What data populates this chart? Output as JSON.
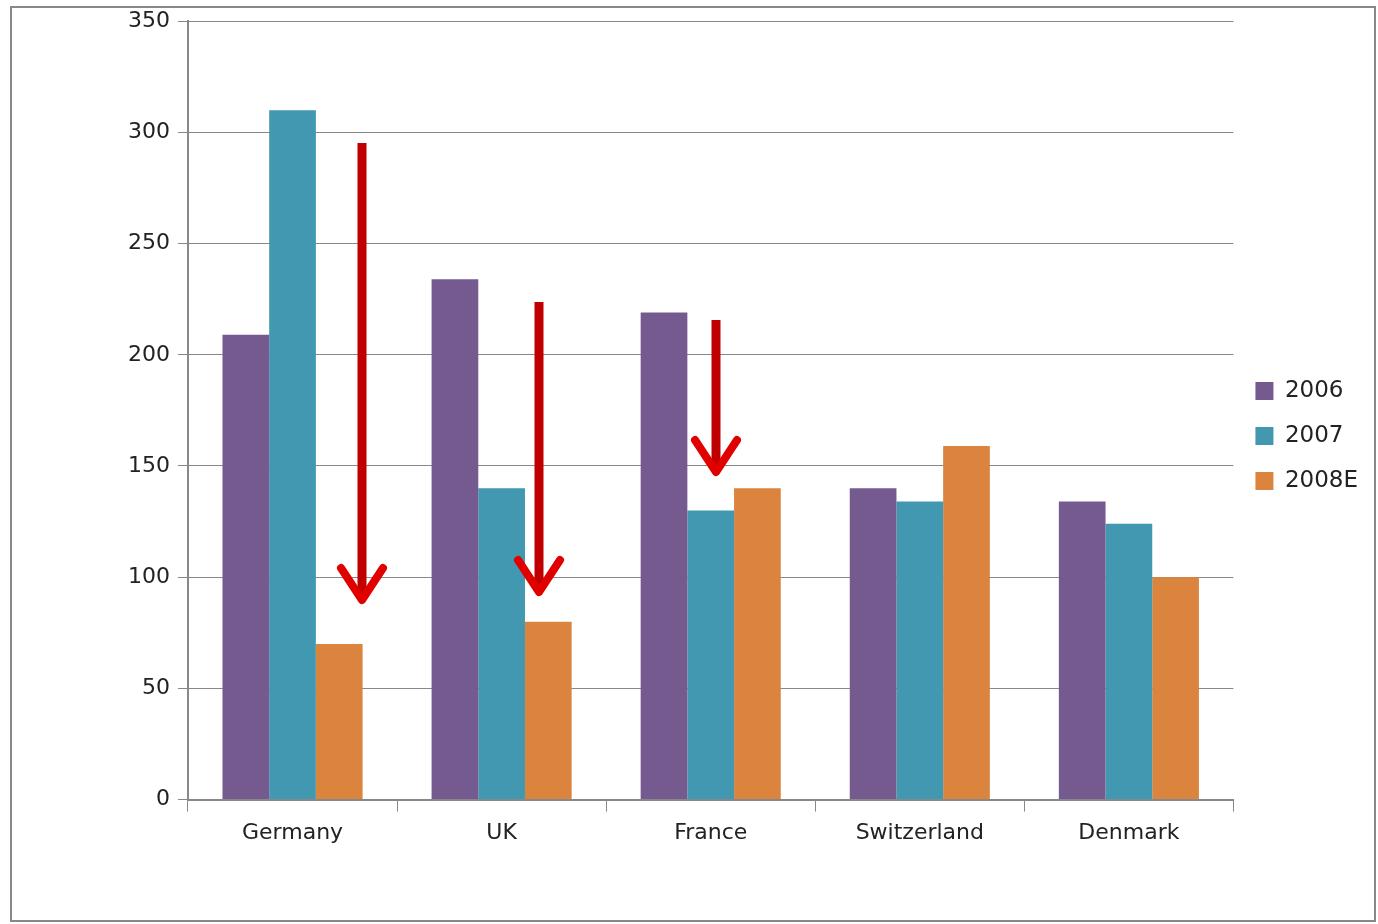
{
  "chart_data": {
    "type": "bar",
    "categories": [
      "Germany",
      "UK",
      "France",
      "Switzerland",
      "Denmark"
    ],
    "series": [
      {
        "name": "2006",
        "color": "#745a8f",
        "values": [
          209,
          234,
          219,
          140,
          134
        ]
      },
      {
        "name": "2007",
        "color": "#4198b0",
        "values": [
          310,
          140,
          130,
          134,
          124
        ]
      },
      {
        "name": "2008E",
        "color": "#db843d",
        "values": [
          70,
          80,
          140,
          159,
          100
        ]
      }
    ],
    "ylim": [
      0,
      350
    ],
    "yticks": [
      0,
      50,
      100,
      150,
      200,
      250,
      300,
      350
    ],
    "grid": "y",
    "legend": "right"
  }
}
